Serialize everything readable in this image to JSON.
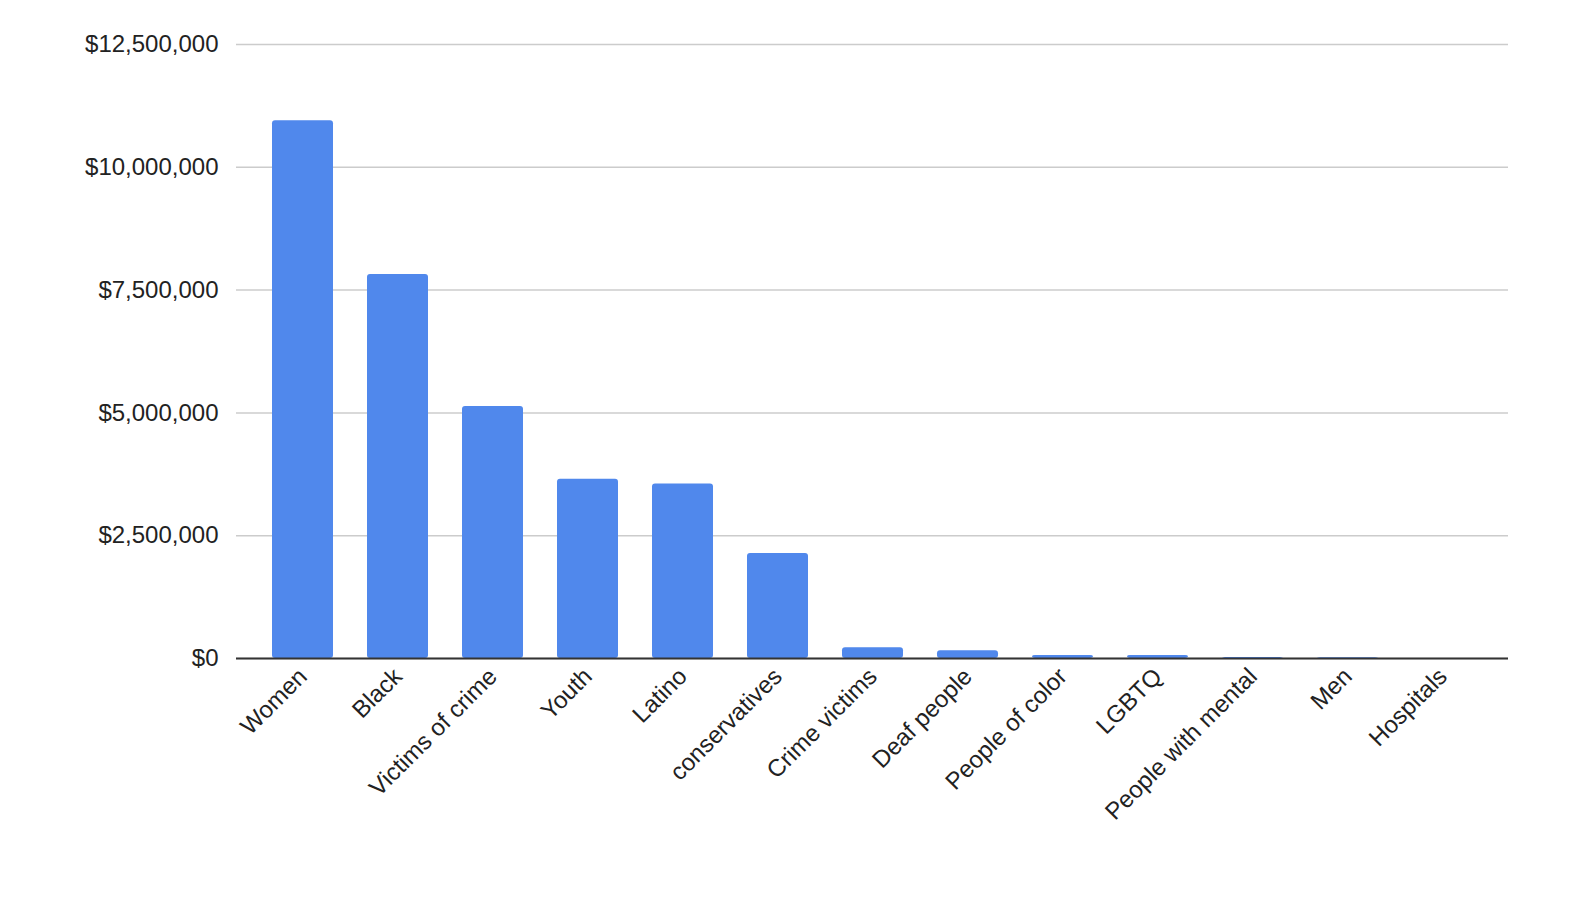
{
  "chart_data": {
    "type": "bar",
    "categories": [
      "Women",
      "Black",
      "Victims of crime",
      "Youth",
      "Latino",
      "conservatives",
      "Crime victims",
      "Deaf people",
      "People of color",
      "LGBTQ",
      "People with mental",
      "Men",
      "Hospitals"
    ],
    "values": [
      10950000,
      7820000,
      5130000,
      3650000,
      3550000,
      2140000,
      220000,
      160000,
      60000,
      60000,
      20000,
      15000,
      0
    ],
    "color": "#5088ec",
    "ylim": [
      0,
      12500000
    ],
    "yticks": [
      {
        "value": 0,
        "label": "$0"
      },
      {
        "value": 2500000,
        "label": "$2,500,000"
      },
      {
        "value": 5000000,
        "label": "$5,000,000"
      },
      {
        "value": 7500000,
        "label": "$7,500,000"
      },
      {
        "value": 10000000,
        "label": "$10,000,000"
      },
      {
        "value": 12500000,
        "label": "$12,500,000"
      }
    ],
    "grid": true
  }
}
